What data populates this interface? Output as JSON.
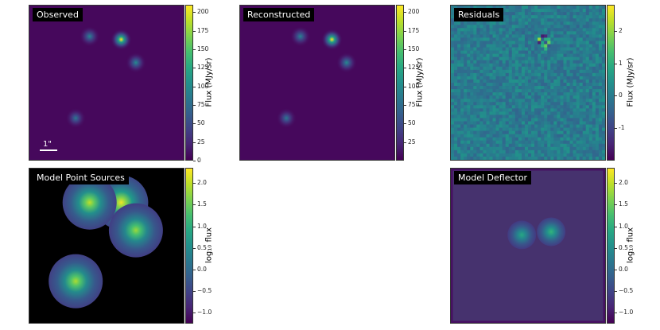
{
  "chart_data": [
    {
      "type": "heatmap",
      "title": "Observed",
      "colormap": "viridis",
      "colorbar_label": "Flux (MJy/sr)",
      "vmin": 0,
      "vmax": 210,
      "colorbar_ticks": [
        0,
        25,
        50,
        75,
        100,
        125,
        150,
        175,
        200
      ],
      "background": "#46085c",
      "sources": [
        {
          "x": 0.595,
          "y": 0.78,
          "peak": 210,
          "sigma": 0.025,
          "halo": 0.06
        },
        {
          "x": 0.39,
          "y": 0.8,
          "peak": 95,
          "sigma": 0.025,
          "halo": 0.04
        },
        {
          "x": 0.69,
          "y": 0.63,
          "peak": 100,
          "sigma": 0.025,
          "halo": 0.04
        },
        {
          "x": 0.3,
          "y": 0.27,
          "peak": 85,
          "sigma": 0.025,
          "halo": 0.04
        }
      ],
      "scalebar": {
        "label": "1\""
      }
    },
    {
      "type": "heatmap",
      "title": "Reconstructed",
      "colormap": "viridis",
      "colorbar_label": "Flux (MJy/sr)",
      "vmin": 0,
      "vmax": 210,
      "colorbar_ticks": [
        25,
        50,
        75,
        100,
        125,
        150,
        175,
        200
      ],
      "background": "#46085c",
      "sources": [
        {
          "x": 0.595,
          "y": 0.78,
          "peak": 210,
          "sigma": 0.025,
          "halo": 0.06
        },
        {
          "x": 0.39,
          "y": 0.8,
          "peak": 95,
          "sigma": 0.025,
          "halo": 0.04
        },
        {
          "x": 0.69,
          "y": 0.63,
          "peak": 100,
          "sigma": 0.025,
          "halo": 0.04
        },
        {
          "x": 0.3,
          "y": 0.27,
          "peak": 85,
          "sigma": 0.025,
          "halo": 0.04
        }
      ]
    },
    {
      "type": "heatmap",
      "title": "Residuals",
      "colormap": "viridis",
      "colorbar_label": "Flux (MJy/sr)",
      "vmin": -2,
      "vmax": 2.8,
      "colorbar_ticks": [
        -1,
        0,
        1,
        2
      ],
      "background": "#3b6e8c",
      "noise": true
    },
    {
      "type": "heatmap",
      "title": "Model Point Sources",
      "colormap": "viridis",
      "colorbar_label": "log₁₀ flux",
      "vmin": -1.25,
      "vmax": 2.35,
      "colorbar_ticks": [
        -1.0,
        -0.5,
        0.0,
        0.5,
        1.0,
        1.5,
        2.0
      ],
      "colorbar_tick_labels": [
        "−1.0",
        "−0.5",
        "0.0",
        "0.5",
        "1.0",
        "1.5",
        "2.0"
      ],
      "background": "#000000",
      "sources": [
        {
          "x": 0.595,
          "y": 0.78,
          "peak": 2.3
        },
        {
          "x": 0.39,
          "y": 0.78,
          "peak": 2.0
        },
        {
          "x": 0.69,
          "y": 0.6,
          "peak": 1.8
        },
        {
          "x": 0.3,
          "y": 0.27,
          "peak": 1.9
        }
      ]
    },
    {
      "type": "heatmap",
      "title": "Model Deflector",
      "colormap": "viridis",
      "colorbar_label": "log₁₀ flux",
      "vmin": -1.25,
      "vmax": 2.35,
      "colorbar_ticks": [
        -1.0,
        -0.5,
        0.0,
        0.5,
        1.0,
        1.5,
        2.0
      ],
      "colorbar_tick_labels": [
        "−1.0",
        "−0.5",
        "0.0",
        "0.5",
        "1.0",
        "1.5",
        "2.0"
      ],
      "background": "#46326e",
      "sources": [
        {
          "x": 0.46,
          "y": 0.57,
          "peak": 0.9
        },
        {
          "x": 0.65,
          "y": 0.59,
          "peak": 1.1
        }
      ]
    }
  ]
}
